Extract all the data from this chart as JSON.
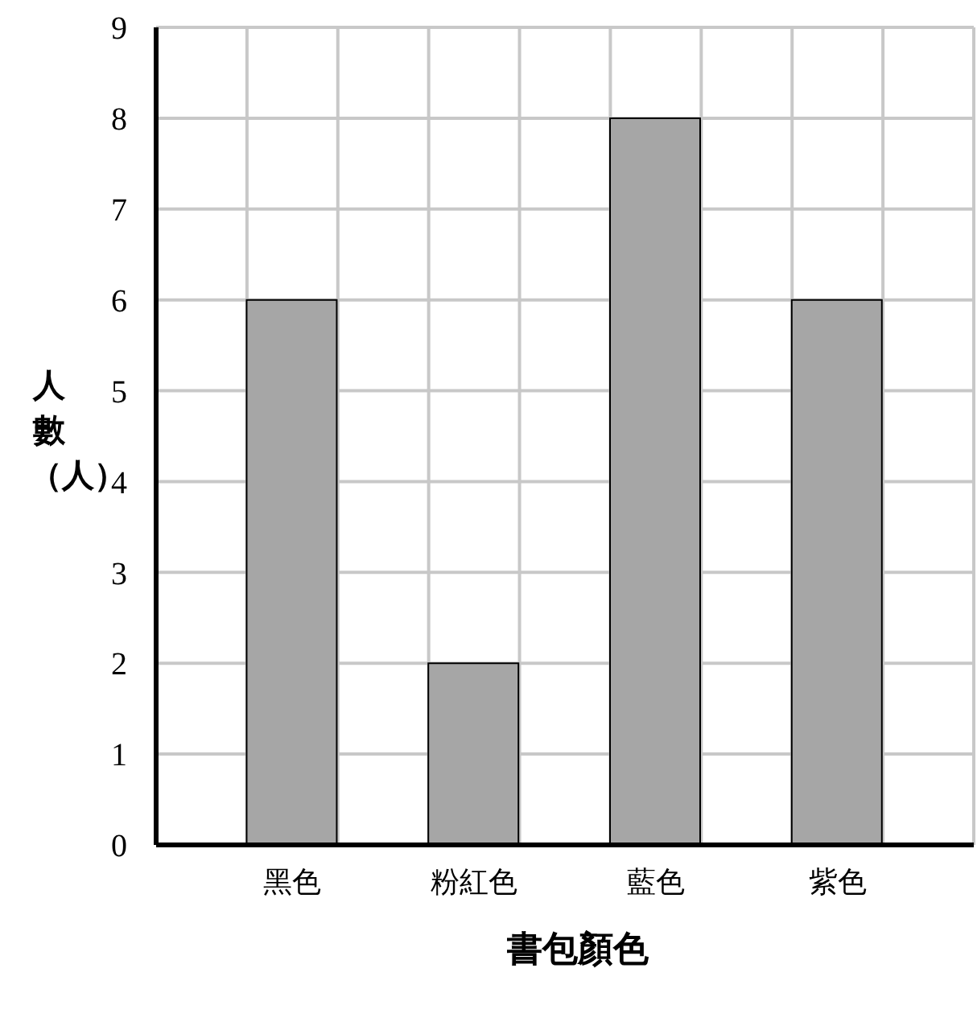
{
  "chart_data": {
    "type": "bar",
    "xlabel": "書包顏色",
    "ylabel": "人數（人）",
    "categories": [
      "黑色",
      "粉紅色",
      "藍色",
      "紫色"
    ],
    "values": [
      6,
      2,
      8,
      6
    ],
    "color": "#a6a6a6",
    "ylim": [
      0,
      9
    ],
    "yticks": [
      0,
      1,
      2,
      3,
      4,
      5,
      6,
      7,
      8,
      9
    ],
    "grid": true
  }
}
